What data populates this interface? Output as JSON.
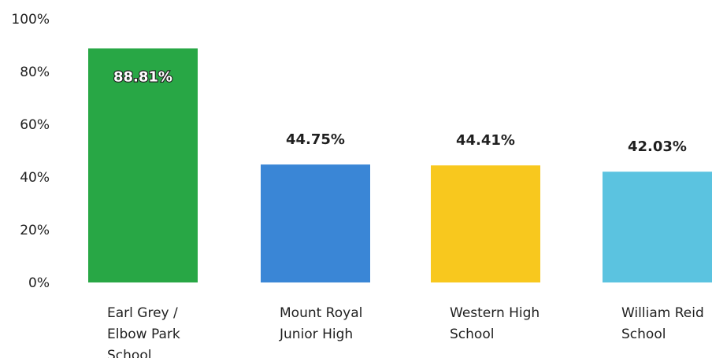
{
  "chart_data": {
    "type": "bar",
    "title": "",
    "xlabel": "",
    "ylabel": "",
    "ylim": [
      0,
      100
    ],
    "yticks": [
      "0%",
      "20%",
      "40%",
      "60%",
      "80%",
      "100%"
    ],
    "ytick_values": [
      0,
      20,
      40,
      60,
      80,
      100
    ],
    "categories": [
      [
        "Earl Grey /",
        "Elbow Park",
        "School"
      ],
      [
        "Mount Royal",
        "Junior High"
      ],
      [
        "Western High",
        "School"
      ],
      [
        "William Reid",
        "School"
      ]
    ],
    "values": [
      88.81,
      44.75,
      44.41,
      42.03
    ],
    "value_labels": [
      "88.81%",
      "44.75%",
      "44.41%",
      "42.03%"
    ],
    "colors": [
      "#28a745",
      "#3a86d6",
      "#f8c81e",
      "#5bc3e0"
    ],
    "label_inside": [
      true,
      false,
      false,
      false
    ]
  }
}
